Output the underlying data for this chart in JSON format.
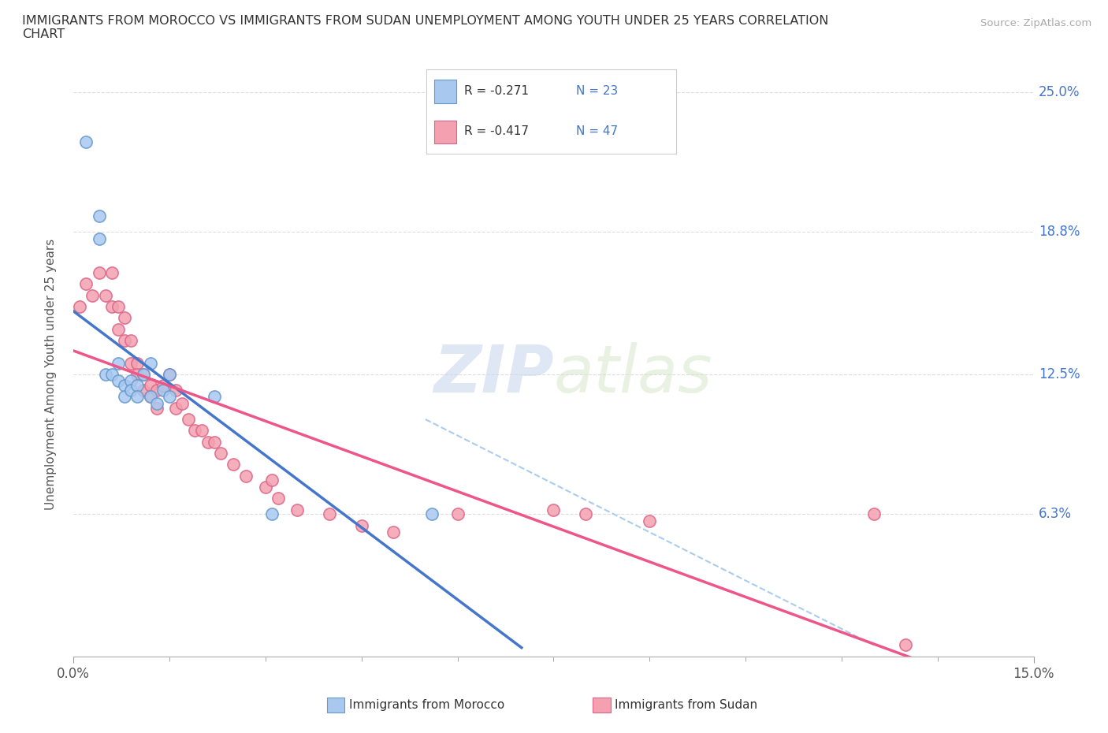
{
  "title": "IMMIGRANTS FROM MOROCCO VS IMMIGRANTS FROM SUDAN UNEMPLOYMENT AMONG YOUTH UNDER 25 YEARS CORRELATION\nCHART",
  "source": "Source: ZipAtlas.com",
  "ylabel": "Unemployment Among Youth under 25 years",
  "xlim": [
    0.0,
    0.15
  ],
  "ylim": [
    0.0,
    0.25
  ],
  "yticks": [
    0.0,
    0.063,
    0.125,
    0.188,
    0.25
  ],
  "ytick_labels": [
    "",
    "6.3%",
    "12.5%",
    "18.8%",
    "25.0%"
  ],
  "xtick_labels_show": [
    "0.0%",
    "15.0%"
  ],
  "xtick_positions_show": [
    0.0,
    0.15
  ],
  "xtick_minor": [
    0.015,
    0.03,
    0.045,
    0.06,
    0.075,
    0.09,
    0.105,
    0.12,
    0.135
  ],
  "morocco_color": "#a8c8f0",
  "sudan_color": "#f4a0b0",
  "morocco_edge_color": "#6699cc",
  "sudan_edge_color": "#dd6688",
  "morocco_line_color": "#4477cc",
  "sudan_line_color": "#ee5588",
  "r_morocco": -0.271,
  "n_morocco": 23,
  "r_sudan": -0.417,
  "n_sudan": 47,
  "legend_label_morocco": "Immigrants from Morocco",
  "legend_label_sudan": "Immigrants from Sudan",
  "watermark_zip": "ZIP",
  "watermark_atlas": "atlas",
  "background_color": "#ffffff",
  "grid_color": "#dddddd",
  "axis_label_color": "#4477cc",
  "morocco_x": [
    0.002,
    0.004,
    0.004,
    0.005,
    0.006,
    0.007,
    0.007,
    0.008,
    0.008,
    0.009,
    0.009,
    0.01,
    0.01,
    0.011,
    0.012,
    0.012,
    0.013,
    0.014,
    0.015,
    0.015,
    0.022,
    0.031,
    0.056
  ],
  "morocco_y": [
    0.228,
    0.195,
    0.185,
    0.125,
    0.125,
    0.13,
    0.122,
    0.12,
    0.115,
    0.122,
    0.118,
    0.12,
    0.115,
    0.125,
    0.13,
    0.115,
    0.112,
    0.118,
    0.125,
    0.115,
    0.115,
    0.063,
    0.063
  ],
  "sudan_x": [
    0.001,
    0.002,
    0.003,
    0.004,
    0.005,
    0.006,
    0.006,
    0.007,
    0.007,
    0.008,
    0.008,
    0.009,
    0.009,
    0.01,
    0.01,
    0.011,
    0.011,
    0.012,
    0.012,
    0.013,
    0.013,
    0.014,
    0.015,
    0.016,
    0.016,
    0.017,
    0.018,
    0.019,
    0.02,
    0.021,
    0.022,
    0.023,
    0.025,
    0.027,
    0.03,
    0.031,
    0.032,
    0.035,
    0.04,
    0.045,
    0.05,
    0.06,
    0.075,
    0.08,
    0.09,
    0.125,
    0.13
  ],
  "sudan_y": [
    0.155,
    0.165,
    0.16,
    0.17,
    0.16,
    0.17,
    0.155,
    0.155,
    0.145,
    0.15,
    0.14,
    0.14,
    0.13,
    0.13,
    0.125,
    0.125,
    0.118,
    0.12,
    0.115,
    0.118,
    0.11,
    0.12,
    0.125,
    0.118,
    0.11,
    0.112,
    0.105,
    0.1,
    0.1,
    0.095,
    0.095,
    0.09,
    0.085,
    0.08,
    0.075,
    0.078,
    0.07,
    0.065,
    0.063,
    0.058,
    0.055,
    0.063,
    0.065,
    0.063,
    0.06,
    0.063,
    0.005
  ],
  "morocco_trend_x": [
    0.0,
    0.07
  ],
  "sudan_trend_x": [
    0.0,
    0.15
  ],
  "dashed_line_x": [
    0.055,
    0.125
  ],
  "dashed_line_y": [
    0.105,
    0.005
  ]
}
